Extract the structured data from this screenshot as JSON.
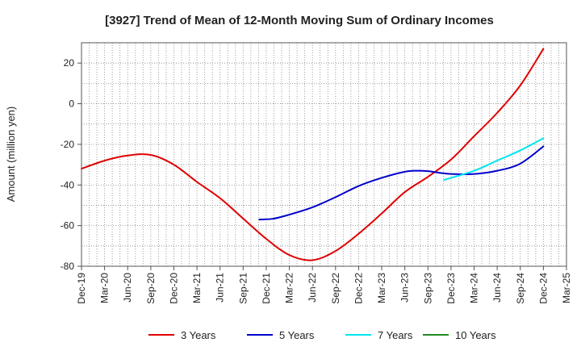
{
  "chart_data": {
    "type": "line",
    "title": "[3927]  Trend of Mean of 12-Month Moving Sum of Ordinary Incomes",
    "xlabel": "",
    "ylabel": "Amount (million yen)",
    "ylim": [
      -80,
      30
    ],
    "yticks": [
      -80,
      -60,
      -40,
      -20,
      0,
      20
    ],
    "grid": true,
    "legend_position": "bottom",
    "categories": [
      "Dec-19",
      "Mar-20",
      "Jun-20",
      "Sep-20",
      "Dec-20",
      "Mar-21",
      "Jun-21",
      "Sep-21",
      "Dec-21",
      "Mar-22",
      "Jun-22",
      "Sep-22",
      "Dec-22",
      "Mar-23",
      "Jun-23",
      "Sep-23",
      "Dec-23",
      "Mar-24",
      "Jun-24",
      "Sep-24",
      "Dec-24",
      "Mar-25"
    ],
    "series": [
      {
        "name": "3 Years",
        "color": "#e00000",
        "points": [
          [
            0,
            -32
          ],
          [
            1,
            -28
          ],
          [
            2,
            -25.5
          ],
          [
            3,
            -25.2
          ],
          [
            4,
            -30
          ],
          [
            5,
            -38.5
          ],
          [
            6,
            -46.5
          ],
          [
            7,
            -56.5
          ],
          [
            8,
            -66.5
          ],
          [
            9,
            -74.5
          ],
          [
            10,
            -77
          ],
          [
            11,
            -72.5
          ],
          [
            12,
            -64
          ],
          [
            13,
            -54
          ],
          [
            14,
            -43.5
          ],
          [
            15,
            -36
          ],
          [
            16,
            -27.5
          ],
          [
            17,
            -16
          ],
          [
            18,
            -4.5
          ],
          [
            19,
            9
          ],
          [
            20,
            27
          ]
        ]
      },
      {
        "name": "5 Years",
        "color": "#0000cc",
        "points": [
          [
            7.7,
            -57
          ],
          [
            8.3,
            -56.6
          ],
          [
            9,
            -54.6
          ],
          [
            10,
            -51
          ],
          [
            11,
            -46
          ],
          [
            12,
            -40.5
          ],
          [
            13,
            -36.5
          ],
          [
            14,
            -33.5
          ],
          [
            14.5,
            -33
          ],
          [
            15,
            -33.2
          ],
          [
            15.5,
            -34
          ],
          [
            16,
            -34.6
          ],
          [
            17,
            -34.6
          ],
          [
            18,
            -33
          ],
          [
            19,
            -29.5
          ],
          [
            20,
            -21
          ]
        ]
      },
      {
        "name": "7 Years",
        "color": "#00e5ee",
        "points": [
          [
            15.7,
            -37.5
          ],
          [
            17,
            -33
          ],
          [
            18,
            -28
          ],
          [
            19,
            -23
          ],
          [
            20,
            -17
          ]
        ]
      },
      {
        "name": "10 Years",
        "color": "#228b22",
        "points": []
      }
    ]
  }
}
